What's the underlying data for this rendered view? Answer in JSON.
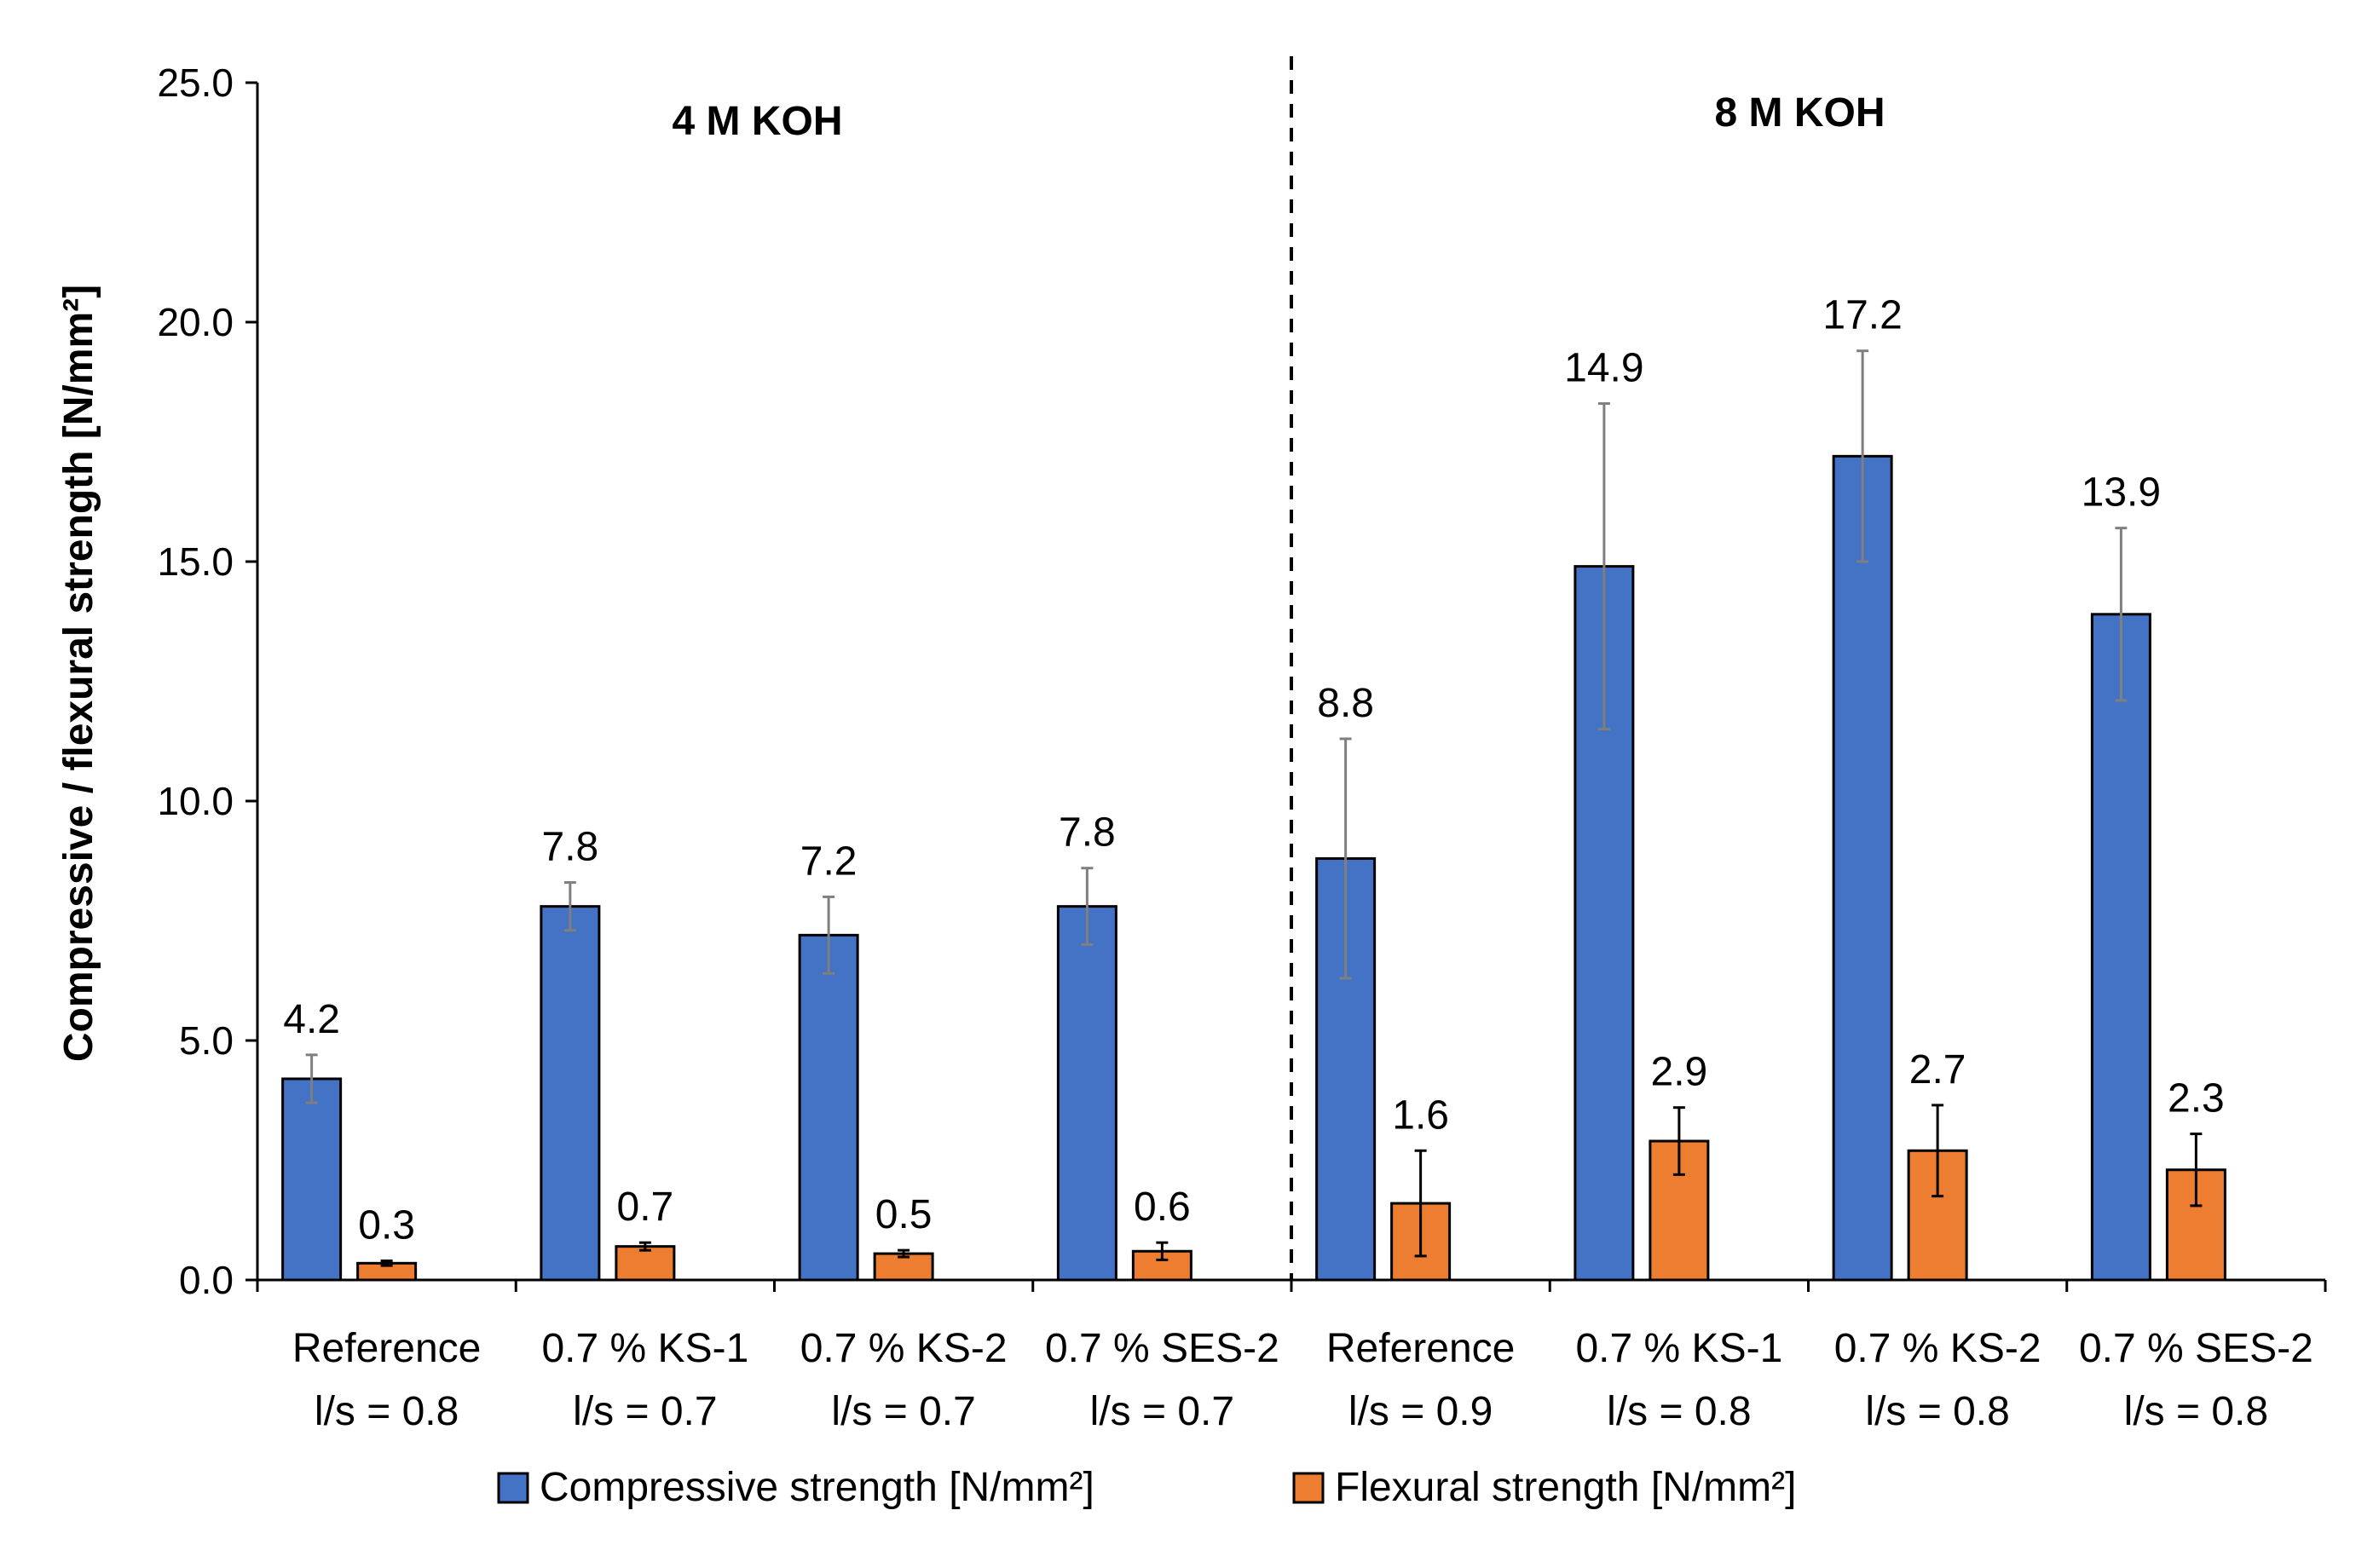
{
  "chart_data": {
    "type": "bar",
    "title": "",
    "xlabel": "",
    "ylabel": "Compressive / flexural strength [N/mm²]",
    "ylim": [
      0,
      25
    ],
    "yticks": [
      "0.0",
      "5.0",
      "10.0",
      "15.0",
      "20.0",
      "25.0"
    ],
    "categories": [
      [
        "Reference",
        "l/s = 0.8"
      ],
      [
        "0.7 % KS-1",
        "l/s = 0.7"
      ],
      [
        "0.7 % KS-2",
        "l/s = 0.7"
      ],
      [
        "0.7 % SES-2",
        "l/s = 0.7"
      ],
      [
        "Reference",
        "l/s = 0.9"
      ],
      [
        "0.7 % KS-1",
        "l/s = 0.8"
      ],
      [
        "0.7 % KS-2",
        "l/s = 0.8"
      ],
      [
        "0.7 % SES-2",
        "l/s = 0.8"
      ]
    ],
    "groups": [
      {
        "label": "4 M KOH",
        "start": 0,
        "end": 3
      },
      {
        "label": "8 M KOH",
        "start": 4,
        "end": 7
      }
    ],
    "series": [
      {
        "name": "Compressive strength [N/mm²]",
        "color": "#4472C4",
        "values": [
          4.2,
          7.8,
          7.2,
          7.8,
          8.8,
          14.9,
          17.2,
          13.9
        ],
        "labels": [
          "4.2",
          "7.8",
          "7.2",
          "7.8",
          "8.8",
          "14.9",
          "17.2",
          "13.9"
        ],
        "errors": [
          0.5,
          0.5,
          0.8,
          0.8,
          2.5,
          3.4,
          2.2,
          1.8
        ],
        "error_color": "#7F7F7F"
      },
      {
        "name": "Flexural strength [N/mm²]",
        "color": "#ED7D31",
        "values": [
          0.35,
          0.7,
          0.55,
          0.6,
          1.6,
          2.9,
          2.7,
          2.3
        ],
        "labels": [
          "0.3",
          "0.7",
          "0.5",
          "0.6",
          "1.6",
          "2.9",
          "2.7",
          "2.3"
        ],
        "errors": [
          0.05,
          0.08,
          0.07,
          0.18,
          1.1,
          0.7,
          0.95,
          0.75
        ],
        "error_color": "#000000"
      }
    ],
    "legend_position": "bottom"
  }
}
